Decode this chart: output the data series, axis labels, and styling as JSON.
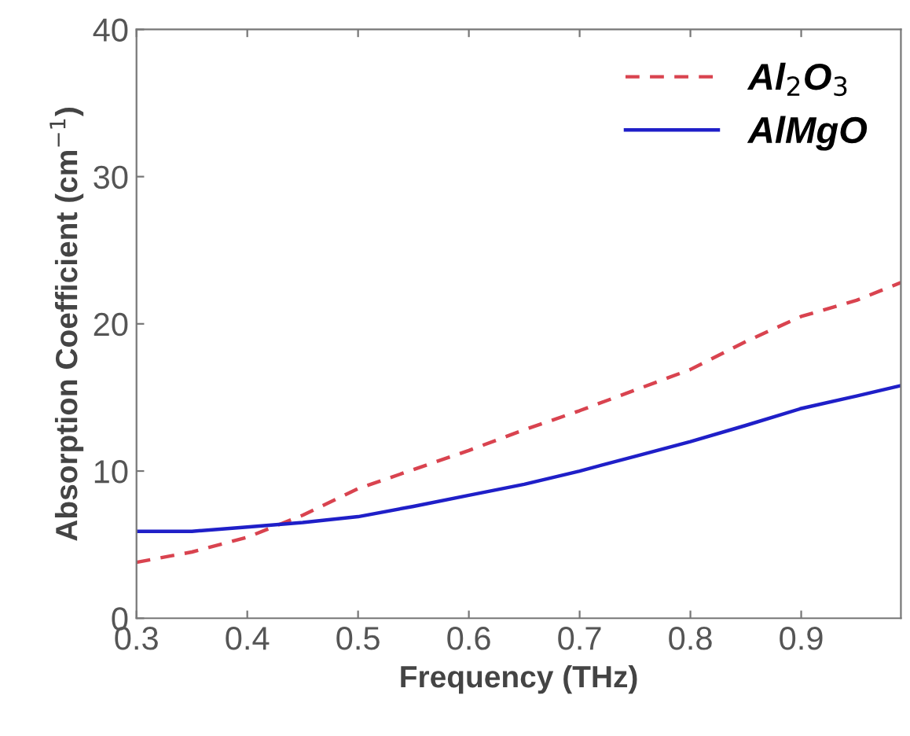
{
  "chart_data": {
    "type": "line",
    "xlabel": "Frequency (THz)",
    "ylabel": "Absorption Coefficient (cm$^{−1}$)",
    "x": [
      0.3,
      0.35,
      0.4,
      0.45,
      0.5,
      0.55,
      0.6,
      0.65,
      0.7,
      0.75,
      0.8,
      0.85,
      0.9,
      0.95,
      0.99
    ],
    "series": [
      {
        "name": "Al$_{2}$O$_{3}$",
        "color": "#d9434f",
        "line_style": "dashed",
        "values": [
          3.8,
          4.5,
          5.5,
          7.0,
          8.8,
          10.1,
          11.4,
          12.8,
          14.1,
          15.5,
          16.9,
          18.8,
          20.5,
          21.6,
          22.8
        ]
      },
      {
        "name": "AlMgO",
        "color": "#1f1fc8",
        "line_style": "solid",
        "values": [
          5.9,
          5.9,
          6.2,
          6.5,
          6.9,
          7.6,
          8.35,
          9.1,
          10.0,
          11.0,
          12.0,
          13.1,
          14.25,
          15.1,
          15.8
        ]
      }
    ],
    "xlim": [
      0.3,
      0.99
    ],
    "ylim": [
      0,
      40
    ],
    "xticks": [
      0.3,
      0.4,
      0.5,
      0.6,
      0.7,
      0.8,
      0.9
    ],
    "yticks": [
      0,
      10,
      20,
      30,
      40
    ],
    "grid": false,
    "legend": "top right",
    "marker": "none"
  }
}
